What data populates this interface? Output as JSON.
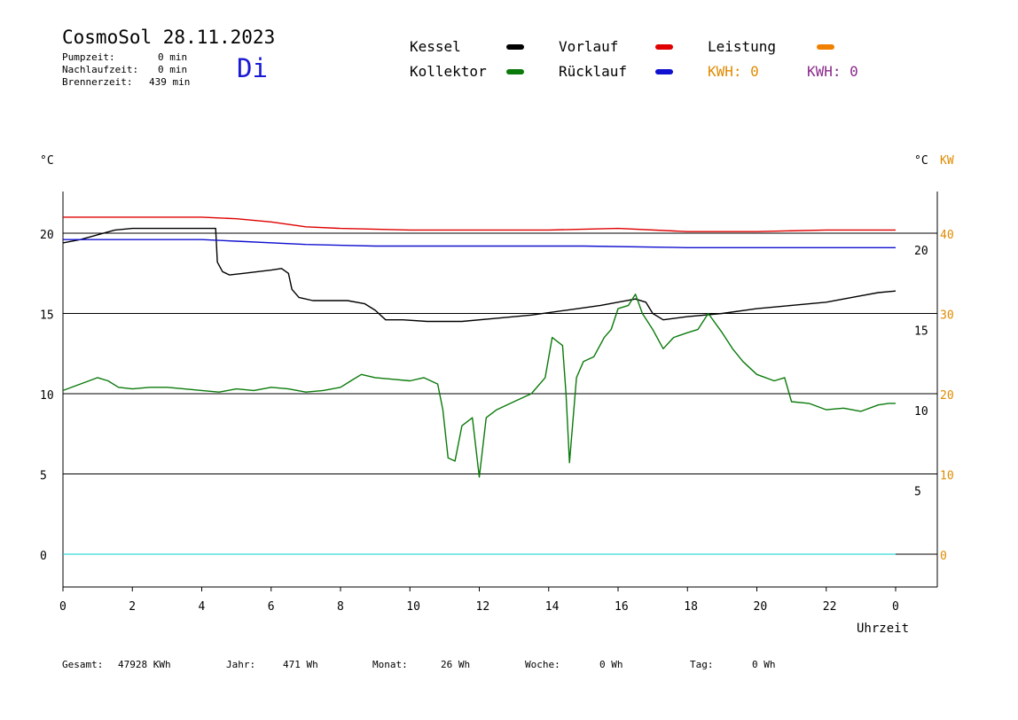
{
  "header": {
    "title": "CosmoSol 28.11.2023",
    "weekday": "Di",
    "stats": [
      {
        "label": "Pumpzeit:",
        "value": "0 min"
      },
      {
        "label": "Nachlaufzeit:",
        "value": "0 min"
      },
      {
        "label": "Brennerzeit:",
        "value": "439 min"
      }
    ]
  },
  "legend": {
    "kessel": "Kessel",
    "kollektor": "Kollektor",
    "vorlauf": "Vorlauf",
    "ruecklauf": "Rücklauf",
    "leistung": "Leistung",
    "kwh1": "KWH: 0",
    "kwh2": "KWH: 0"
  },
  "colors": {
    "kessel": "#000000",
    "kollektor": "#0a7a0a",
    "vorlauf": "#e00000",
    "ruecklauf": "#1010d0",
    "leistung": "#f08000",
    "kwh2": "#8a2a8a",
    "pumpe": "#00d0d0",
    "kw_axis": "#e08a00"
  },
  "axes": {
    "left_unit": "°C",
    "right_unit": "°C",
    "kw_unit": "KW",
    "x_title": "Uhrzeit"
  },
  "footer": [
    {
      "label": "Gesamt:",
      "value": "47928 KWh"
    },
    {
      "label": "Jahr:",
      "value": "471 Wh"
    },
    {
      "label": "Monat:",
      "value": "26 Wh"
    },
    {
      "label": "Woche:",
      "value": "0 Wh"
    },
    {
      "label": "Tag:",
      "value": "0 Wh"
    }
  ],
  "chart_data": {
    "type": "line",
    "xlabel": "Uhrzeit",
    "ylabel": "°C",
    "xlim": [
      0,
      24
    ],
    "ylim_left": [
      0,
      22
    ],
    "x_ticks": [
      "0",
      "2",
      "4",
      "6",
      "8",
      "10",
      "12",
      "14",
      "16",
      "18",
      "20",
      "22",
      "0"
    ],
    "y_ticks_left": [
      "0",
      "5",
      "10",
      "15",
      "20"
    ],
    "y_ticks_right_c": [
      "5",
      "10",
      "15",
      "20"
    ],
    "y_ticks_right_kw": [
      "0",
      "10",
      "20",
      "30",
      "40"
    ],
    "grid": "horizontal",
    "series": [
      {
        "name": "Kessel",
        "color": "#000000",
        "points": [
          [
            0,
            19.4
          ],
          [
            0.5,
            19.6
          ],
          [
            1,
            19.9
          ],
          [
            1.5,
            20.2
          ],
          [
            2,
            20.3
          ],
          [
            2.5,
            20.3
          ],
          [
            3,
            20.3
          ],
          [
            3.5,
            20.3
          ],
          [
            4,
            20.3
          ],
          [
            4.4,
            20.3
          ],
          [
            4.45,
            18.2
          ],
          [
            4.6,
            17.6
          ],
          [
            4.8,
            17.4
          ],
          [
            5.2,
            17.5
          ],
          [
            5.6,
            17.6
          ],
          [
            6,
            17.7
          ],
          [
            6.3,
            17.8
          ],
          [
            6.5,
            17.5
          ],
          [
            6.6,
            16.5
          ],
          [
            6.8,
            16.0
          ],
          [
            7.2,
            15.8
          ],
          [
            7.6,
            15.8
          ],
          [
            8.2,
            15.8
          ],
          [
            8.7,
            15.6
          ],
          [
            9,
            15.2
          ],
          [
            9.3,
            14.6
          ],
          [
            9.8,
            14.6
          ],
          [
            10.5,
            14.5
          ],
          [
            11.5,
            14.5
          ],
          [
            12.5,
            14.7
          ],
          [
            13.5,
            14.9
          ],
          [
            14.5,
            15.2
          ],
          [
            15.5,
            15.5
          ],
          [
            16,
            15.7
          ],
          [
            16.5,
            15.9
          ],
          [
            16.8,
            15.7
          ],
          [
            17,
            15.0
          ],
          [
            17.3,
            14.6
          ],
          [
            18,
            14.8
          ],
          [
            19,
            15.0
          ],
          [
            20,
            15.3
          ],
          [
            21,
            15.5
          ],
          [
            22,
            15.7
          ],
          [
            22.5,
            15.9
          ],
          [
            23,
            16.1
          ],
          [
            23.5,
            16.3
          ],
          [
            24,
            16.4
          ]
        ]
      },
      {
        "name": "Kollektor",
        "color": "#0a7a0a",
        "points": [
          [
            0,
            10.2
          ],
          [
            0.5,
            10.6
          ],
          [
            1,
            11
          ],
          [
            1.3,
            10.8
          ],
          [
            1.6,
            10.4
          ],
          [
            2,
            10.3
          ],
          [
            2.5,
            10.4
          ],
          [
            3,
            10.4
          ],
          [
            3.5,
            10.3
          ],
          [
            4,
            10.2
          ],
          [
            4.5,
            10.1
          ],
          [
            5,
            10.3
          ],
          [
            5.5,
            10.2
          ],
          [
            6,
            10.4
          ],
          [
            6.5,
            10.3
          ],
          [
            7,
            10.1
          ],
          [
            7.5,
            10.2
          ],
          [
            8,
            10.4
          ],
          [
            8.3,
            10.8
          ],
          [
            8.6,
            11.2
          ],
          [
            9,
            11
          ],
          [
            9.5,
            10.9
          ],
          [
            10,
            10.8
          ],
          [
            10.4,
            11
          ],
          [
            10.8,
            10.6
          ],
          [
            10.95,
            9
          ],
          [
            11.1,
            6
          ],
          [
            11.3,
            5.8
          ],
          [
            11.5,
            8
          ],
          [
            11.8,
            8.5
          ],
          [
            12,
            4.8
          ],
          [
            12.2,
            8.5
          ],
          [
            12.5,
            9
          ],
          [
            13,
            9.5
          ],
          [
            13.5,
            10
          ],
          [
            13.9,
            11
          ],
          [
            14.1,
            13.5
          ],
          [
            14.4,
            13
          ],
          [
            14.5,
            10
          ],
          [
            14.6,
            5.7
          ],
          [
            14.8,
            11
          ],
          [
            15,
            12
          ],
          [
            15.3,
            12.3
          ],
          [
            15.6,
            13.5
          ],
          [
            15.8,
            14
          ],
          [
            16,
            15.3
          ],
          [
            16.3,
            15.5
          ],
          [
            16.5,
            16.2
          ],
          [
            16.7,
            15
          ],
          [
            17,
            14
          ],
          [
            17.3,
            12.8
          ],
          [
            17.6,
            13.5
          ],
          [
            18,
            13.8
          ],
          [
            18.3,
            14
          ],
          [
            18.6,
            15
          ],
          [
            19,
            13.8
          ],
          [
            19.3,
            12.8
          ],
          [
            19.6,
            12
          ],
          [
            20,
            11.2
          ],
          [
            20.5,
            10.8
          ],
          [
            20.8,
            11
          ],
          [
            21,
            9.5
          ],
          [
            21.5,
            9.4
          ],
          [
            22,
            9
          ],
          [
            22.5,
            9.1
          ],
          [
            23,
            8.9
          ],
          [
            23.5,
            9.3
          ],
          [
            23.8,
            9.4
          ],
          [
            24,
            9.4
          ]
        ]
      },
      {
        "name": "Vorlauf",
        "color": "#e00000",
        "points": [
          [
            0,
            21
          ],
          [
            2,
            21
          ],
          [
            4,
            21
          ],
          [
            5,
            20.9
          ],
          [
            6,
            20.7
          ],
          [
            7,
            20.4
          ],
          [
            8,
            20.3
          ],
          [
            10,
            20.2
          ],
          [
            12,
            20.2
          ],
          [
            14,
            20.2
          ],
          [
            16,
            20.3
          ],
          [
            18,
            20.1
          ],
          [
            20,
            20.1
          ],
          [
            22,
            20.2
          ],
          [
            24,
            20.2
          ]
        ]
      },
      {
        "name": "Rücklauf",
        "color": "#1010d0",
        "points": [
          [
            0,
            19.6
          ],
          [
            2,
            19.6
          ],
          [
            4,
            19.6
          ],
          [
            5,
            19.5
          ],
          [
            7,
            19.3
          ],
          [
            9,
            19.2
          ],
          [
            12,
            19.2
          ],
          [
            15,
            19.2
          ],
          [
            18,
            19.1
          ],
          [
            20,
            19.1
          ],
          [
            24,
            19.1
          ]
        ]
      },
      {
        "name": "Pumpe",
        "color": "#00d0d0",
        "points": [
          [
            0,
            0
          ],
          [
            24,
            0
          ]
        ]
      }
    ]
  }
}
